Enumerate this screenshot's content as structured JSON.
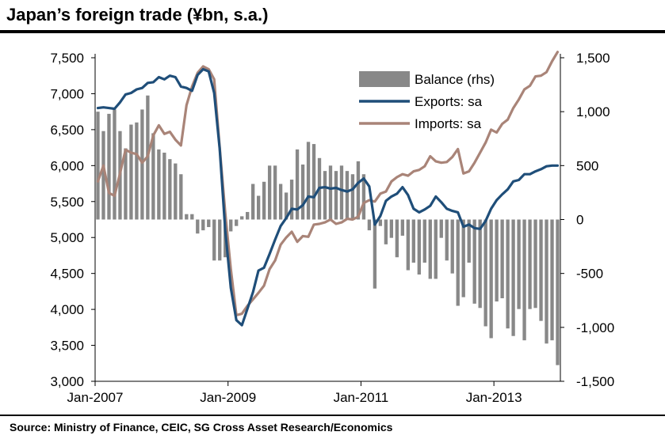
{
  "title": "Japan’s foreign trade (¥bn, s.a.)",
  "source": "Source: Ministry of Finance, CEIC, SG Cross Asset Research/Economics",
  "colors": {
    "balance": "#888888",
    "exports": "#1f4e79",
    "imports": "#a98478"
  },
  "chart_data": {
    "type": "line",
    "x_ticks": [
      "Jan-2007",
      "Jan-2009",
      "Jan-2011",
      "Jan-2013"
    ],
    "x_tick_index": [
      0,
      24,
      48,
      72
    ],
    "y_left": {
      "ticks": [
        "3,000",
        "3,500",
        "4,000",
        "4,500",
        "5,000",
        "5,500",
        "6,000",
        "6,500",
        "7,000",
        "7,500"
      ],
      "ylim": [
        3000,
        7500
      ]
    },
    "y_right": {
      "ticks": [
        "-1,500",
        "-1,000",
        "-500",
        "0",
        "500",
        "1,000",
        "1,500"
      ],
      "ylim": [
        -1500,
        1500
      ]
    },
    "legend": [
      "Balance (rhs)",
      "Exports: sa",
      "Imports: sa"
    ],
    "legend_position": "top-right",
    "series": [
      {
        "name": "Balance (rhs)",
        "type": "bar",
        "axis": "right",
        "values": [
          1000,
          820,
          980,
          1020,
          820,
          660,
          880,
          900,
          1020,
          1150,
          800,
          650,
          620,
          560,
          520,
          420,
          50,
          50,
          -130,
          -100,
          -70,
          -380,
          -380,
          -350,
          -110,
          -60,
          30,
          70,
          330,
          220,
          350,
          500,
          500,
          330,
          250,
          370,
          650,
          510,
          720,
          700,
          570,
          450,
          500,
          450,
          500,
          450,
          420,
          540,
          420,
          -100,
          -640,
          -60,
          -230,
          -170,
          -350,
          -150,
          -470,
          -400,
          -510,
          -400,
          -550,
          -550,
          -170,
          -380,
          -500,
          -800,
          -720,
          -400,
          -780,
          -820,
          -990,
          -1100,
          -760,
          -730,
          -1010,
          -1080,
          -830,
          -1120,
          -830,
          -820,
          -940,
          -1150,
          -1120,
          -1350
        ]
      },
      {
        "name": "Exports: sa",
        "type": "line",
        "axis": "left",
        "values": [
          6800,
          6810,
          6800,
          6790,
          6880,
          6990,
          7010,
          7060,
          7080,
          7150,
          7160,
          7230,
          7200,
          7250,
          7230,
          7100,
          7080,
          7040,
          7260,
          7340,
          7310,
          7010,
          6230,
          5100,
          4300,
          3850,
          3780,
          4010,
          4240,
          4540,
          4580,
          4770,
          4970,
          5160,
          5270,
          5400,
          5390,
          5450,
          5570,
          5560,
          5690,
          5700,
          5680,
          5690,
          5660,
          5640,
          5670,
          5760,
          5820,
          5710,
          5180,
          5300,
          5510,
          5570,
          5610,
          5700,
          5590,
          5400,
          5350,
          5390,
          5440,
          5570,
          5490,
          5400,
          5370,
          5350,
          5150,
          5180,
          5130,
          5120,
          5230,
          5400,
          5520,
          5600,
          5670,
          5780,
          5800,
          5880,
          5880,
          5920,
          5950,
          5990,
          6000,
          6000
        ]
      },
      {
        "name": "Imports: sa",
        "type": "line",
        "axis": "left",
        "values": [
          5780,
          6000,
          5620,
          5580,
          5890,
          6220,
          6180,
          6160,
          6040,
          6130,
          6420,
          6560,
          6440,
          6470,
          6360,
          6280,
          6840,
          7100,
          7290,
          7380,
          7340,
          7200,
          6250,
          5340,
          4560,
          3920,
          3940,
          4050,
          4140,
          4230,
          4330,
          4560,
          4680,
          4900,
          5000,
          5080,
          4940,
          5020,
          5010,
          5180,
          5190,
          5210,
          5250,
          5190,
          5210,
          5260,
          5250,
          5290,
          5480,
          5520,
          5500,
          5610,
          5640,
          5780,
          5840,
          5880,
          5860,
          5920,
          5940,
          5990,
          6130,
          6060,
          6040,
          6050,
          6120,
          6230,
          5890,
          5920,
          6040,
          6180,
          6320,
          6500,
          6460,
          6580,
          6640,
          6800,
          6920,
          7060,
          7110,
          7240,
          7250,
          7300,
          7450,
          7580
        ]
      }
    ]
  }
}
